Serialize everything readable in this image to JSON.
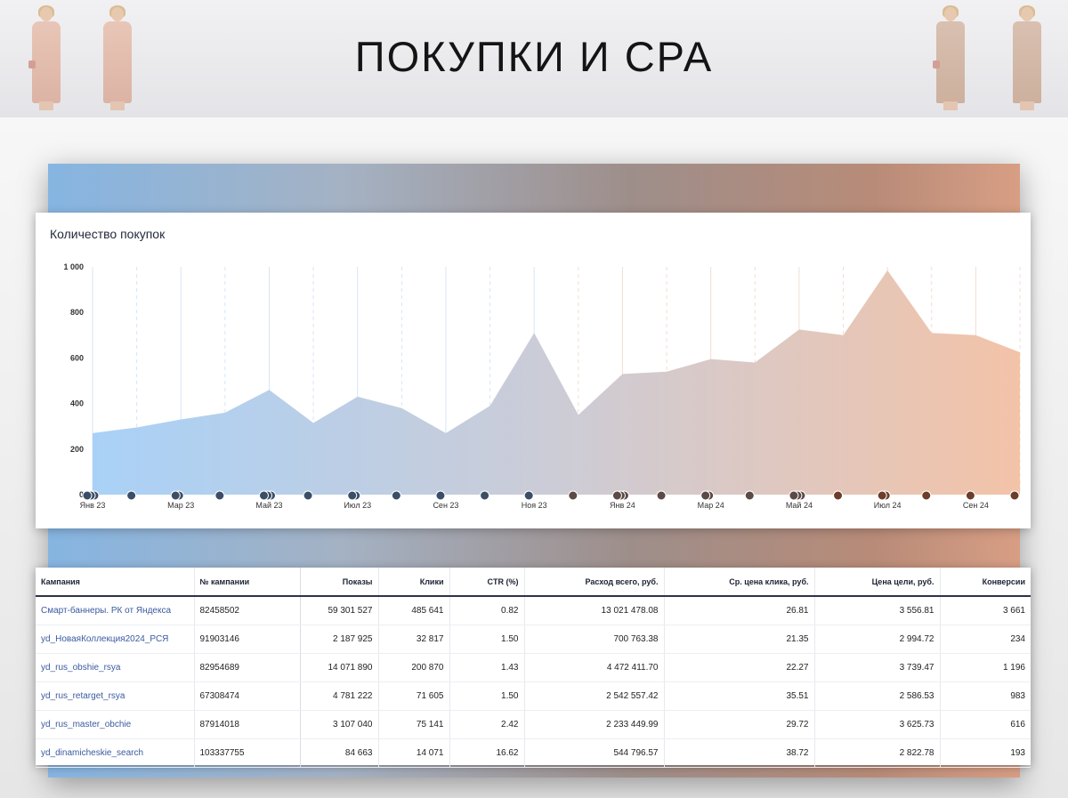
{
  "title": "ПОКУПКИ И СРА",
  "chart_data": {
    "type": "area",
    "title": "Количество покупок",
    "x": [
      "Янв 23",
      "Фев 23",
      "Мар 23",
      "Апр 23",
      "Май 23",
      "Июн 23",
      "Июл 23",
      "Авг 23",
      "Сен 23",
      "Окт 23",
      "Ноя 23",
      "Дек 23",
      "Янв 24",
      "Фев 24",
      "Мар 24",
      "Апр 24",
      "Май 24",
      "Июн 24",
      "Июл 24",
      "Авг 24",
      "Сен 24",
      "Окт 24"
    ],
    "values": [
      270,
      295,
      330,
      360,
      460,
      315,
      430,
      380,
      270,
      390,
      710,
      350,
      530,
      540,
      595,
      580,
      725,
      700,
      985,
      710,
      700,
      625
    ],
    "x_tick_labels": [
      "Янв 23",
      "Мар 23",
      "Май 23",
      "Июл 23",
      "Сен 23",
      "Ноя 23",
      "Янв 24",
      "Мар 24",
      "Май 24",
      "Июл 24",
      "Сен 24"
    ],
    "y_tick_labels": [
      "0",
      "200",
      "400",
      "600",
      "800",
      "1 000"
    ],
    "ylim": [
      0,
      1000
    ],
    "grid": true,
    "colors": {
      "start": "#a9d1f7",
      "middle": "#ccccd6",
      "end": "#f3c3a8"
    }
  },
  "table": {
    "headers": [
      "Кампания",
      "№ кампании",
      "Показы",
      "Клики",
      "CTR (%)",
      "Расход всего, руб.",
      "Ср. цена клика, руб.",
      "Цена цели, руб.",
      "Конверсии"
    ],
    "rows": [
      [
        "Смарт-баннеры. РК от Яндекса",
        "82458502",
        "59 301 527",
        "485 641",
        "0.82",
        "13 021 478.08",
        "26.81",
        "3 556.81",
        "3 661"
      ],
      [
        "yd_НоваяКоллекция2024_РСЯ",
        "91903146",
        "2 187 925",
        "32 817",
        "1.50",
        "700 763.38",
        "21.35",
        "2 994.72",
        "234"
      ],
      [
        "yd_rus_obshie_rsya",
        "82954689",
        "14 071 890",
        "200 870",
        "1.43",
        "4 472 411.70",
        "22.27",
        "3 739.47",
        "1 196"
      ],
      [
        "yd_rus_retarget_rsya",
        "67308474",
        "4 781 222",
        "71 605",
        "1.50",
        "2 542 557.42",
        "35.51",
        "2 586.53",
        "983"
      ],
      [
        "yd_rus_master_obchie",
        "87914018",
        "3 107 040",
        "75 141",
        "2.42",
        "2 233 449.99",
        "29.72",
        "3 625.73",
        "616"
      ],
      [
        "yd_dinamicheskie_search",
        "103337755",
        "84 663",
        "14 071",
        "16.62",
        "544 796.57",
        "38.72",
        "2 822.78",
        "193"
      ]
    ]
  }
}
